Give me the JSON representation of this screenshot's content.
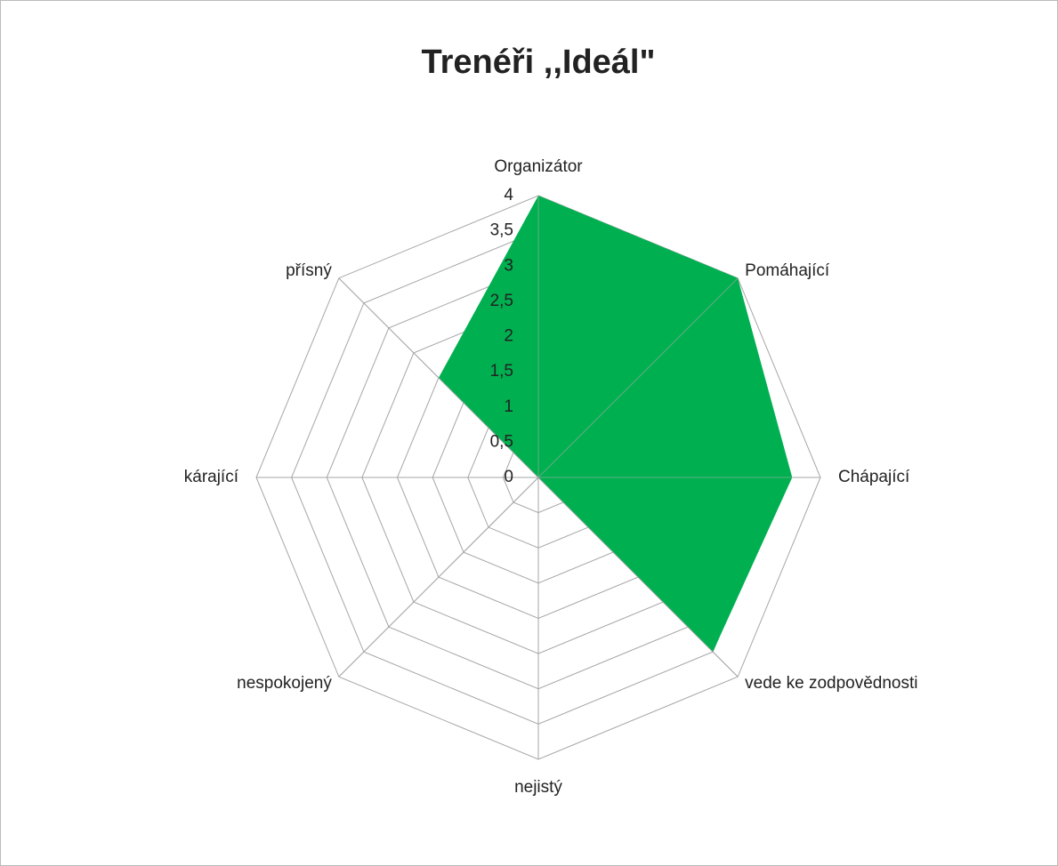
{
  "chart_data": {
    "type": "radar",
    "title": "Trenéři ,,Ideál\"",
    "categories": [
      "Organizátor",
      "Pomáhající",
      "Chápající",
      "vede ke zodpovědnosti",
      "nejistý",
      "nespokojený",
      "kárající",
      "přísný"
    ],
    "values": [
      4,
      4,
      3.6,
      3.5,
      0,
      0,
      0,
      2
    ],
    "color": "#00b050",
    "ylim": [
      0,
      4
    ],
    "yticks": [
      0,
      {
        "value": 0.5,
        "label": "0,5"
      },
      1,
      {
        "value": 1.5,
        "label": "1,5"
      },
      2,
      {
        "value": 2.5,
        "label": "2,5"
      },
      3,
      {
        "value": 3.5,
        "label": "3,5"
      },
      4
    ],
    "grid": true
  }
}
